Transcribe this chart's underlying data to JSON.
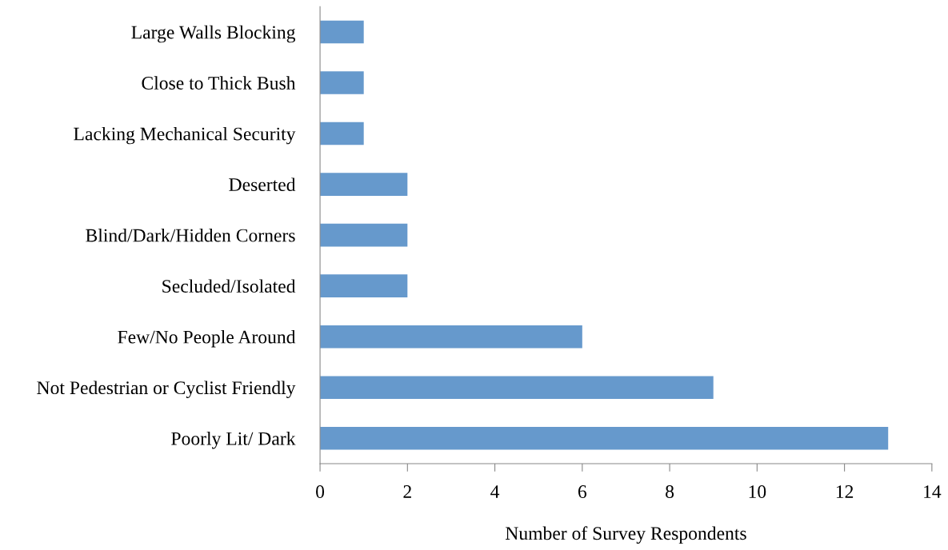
{
  "chart_data": {
    "type": "bar",
    "orientation": "horizontal",
    "xlabel": "Number of Survey Respondents",
    "categories": [
      "Large Walls Blocking",
      "Close to Thick Bush",
      "Lacking Mechanical Security",
      "Deserted",
      "Blind/Dark/Hidden Corners",
      "Secluded/Isolated",
      "Few/No People Around",
      "Not Pedestrian or Cyclist Friendly",
      "Poorly Lit/ Dark"
    ],
    "values": [
      1,
      1,
      1,
      2,
      2,
      2,
      6,
      9,
      13
    ],
    "color": "#6699cc",
    "xlim": [
      0,
      14
    ],
    "xticks": [
      0,
      2,
      4,
      6,
      8,
      10,
      12,
      14
    ],
    "grid": false
  }
}
